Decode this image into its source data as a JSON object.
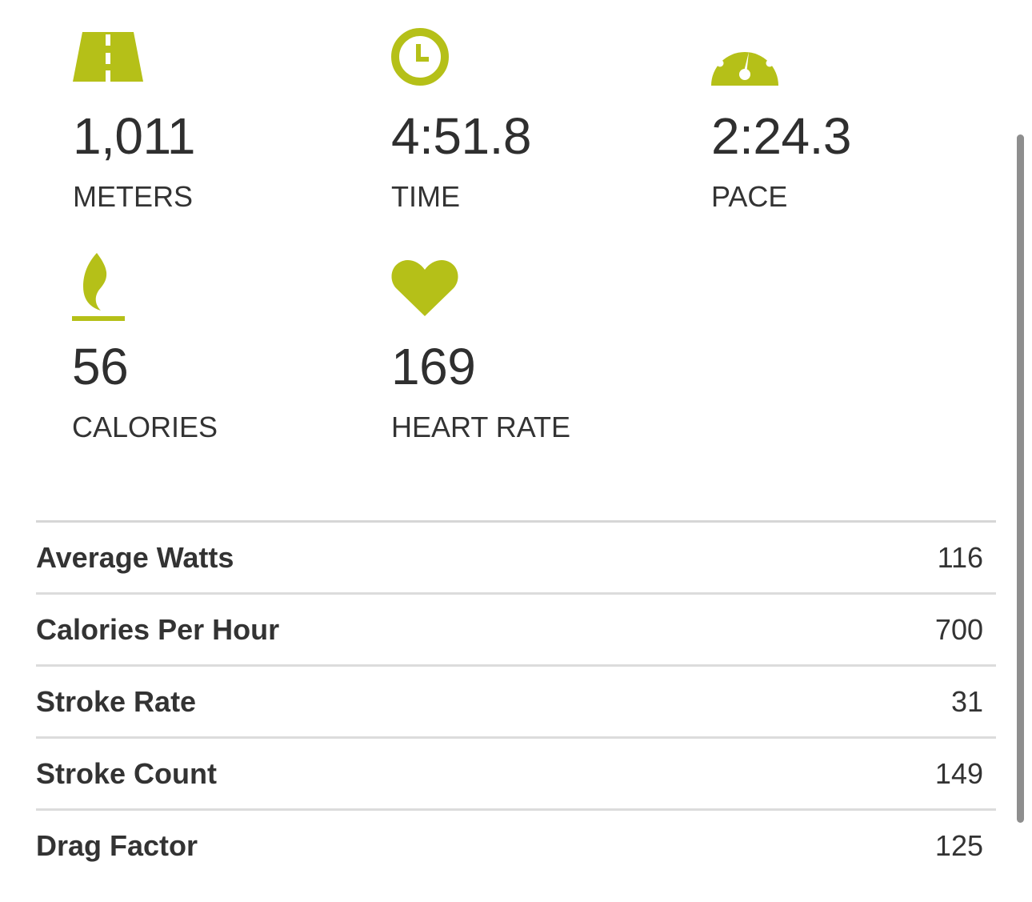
{
  "colors": {
    "accent": "#b5c018",
    "text": "#333333",
    "divider": "#dcdcdc",
    "scrollbar": "#8e8e8e"
  },
  "stats": [
    {
      "icon": "road-icon",
      "value": "1,011",
      "label": "METERS"
    },
    {
      "icon": "clock-icon",
      "value": "4:51.8",
      "label": "TIME"
    },
    {
      "icon": "speedometer-icon",
      "value": "2:24.3",
      "label": "PACE"
    },
    {
      "icon": "flame-icon",
      "value": "56",
      "label": "CALORIES"
    },
    {
      "icon": "heart-icon",
      "value": "169",
      "label": "HEART RATE"
    }
  ],
  "details": [
    {
      "label": "Average Watts",
      "value": "116"
    },
    {
      "label": "Calories Per Hour",
      "value": "700"
    },
    {
      "label": "Stroke Rate",
      "value": "31"
    },
    {
      "label": "Stroke Count",
      "value": "149"
    },
    {
      "label": "Drag Factor",
      "value": "125"
    }
  ]
}
